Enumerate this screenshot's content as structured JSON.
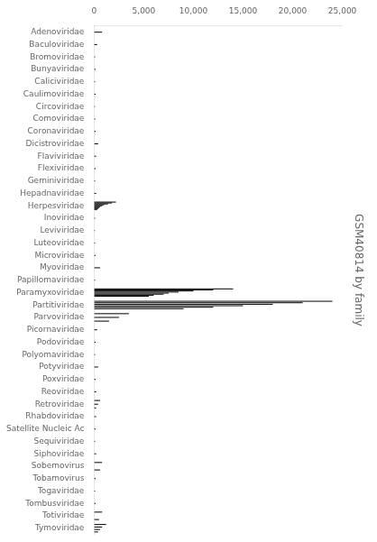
{
  "chart_data": {
    "type": "line_segments",
    "title": "GSM40814 by family",
    "orientation": "horizontal",
    "color": "#000000",
    "grid": false,
    "xlim": [
      0,
      25000
    ],
    "xticks": [
      0,
      {
        "value": 5000,
        "label": "5,000"
      },
      {
        "value": 10000,
        "label": "10,000"
      },
      {
        "value": 15000,
        "label": "15,000"
      },
      {
        "value": 20000,
        "label": "20,000"
      },
      {
        "value": 25000,
        "label": "25,000"
      }
    ],
    "categories": [
      "Adenoviridae",
      "Baculoviridae",
      "Bromoviridae",
      "Bunyaviridae",
      "Caliciviridae",
      "Caulimoviridae",
      "Circoviridae",
      "Comoviridae",
      "Coronaviridae",
      "Dicistroviridae",
      "Flaviviridae",
      "Flexiviridae",
      "Geminiviridae",
      "Hepadnaviridae",
      "Herpesviridae",
      "Inoviridae",
      "Leviviridae",
      "Luteoviridae",
      "Microviridae",
      "Myoviridae",
      "Papillomaviridae",
      "Paramyxoviridae",
      "Partitiviridae",
      "Parvoviridae",
      "Picornaviridae",
      "Podoviridae",
      "Polyomaviridae",
      "Potyviridae",
      "Poxviridae",
      "Reoviridae",
      "Retroviridae",
      "Rhabdoviridae",
      "Satellite Nucleic Ac",
      "Sequiviridae",
      "Siphoviridae",
      "Sobemovirus",
      "Tobamovirus",
      "Togaviridae",
      "Tombusviridae",
      "Totiviridae",
      "Tymoviridae"
    ],
    "values": [
      [
        [
          0,
          800
        ]
      ],
      [
        [
          0,
          300
        ]
      ],
      [
        [
          0,
          100
        ]
      ],
      [
        [
          0,
          150
        ]
      ],
      [
        [
          0,
          100
        ]
      ],
      [
        [
          0,
          150
        ]
      ],
      [
        [
          0,
          80
        ]
      ],
      [
        [
          0,
          120
        ]
      ],
      [
        [
          0,
          150
        ]
      ],
      [
        [
          0,
          400
        ]
      ],
      [
        [
          0,
          200
        ]
      ],
      [
        [
          0,
          150
        ]
      ],
      [
        [
          0,
          100
        ]
      ],
      [
        [
          0,
          200
        ]
      ],
      [
        [
          0,
          2200
        ],
        [
          0,
          1800
        ],
        [
          0,
          1400
        ],
        [
          0,
          1000
        ],
        [
          0,
          800
        ],
        [
          0,
          600
        ],
        [
          0,
          500
        ],
        [
          0,
          400
        ],
        [
          0,
          300
        ]
      ],
      [
        [
          0,
          100
        ]
      ],
      [
        [
          0,
          80
        ]
      ],
      [
        [
          0,
          100
        ]
      ],
      [
        [
          0,
          150
        ]
      ],
      [
        [
          0,
          600
        ]
      ],
      [
        [
          0,
          100
        ]
      ],
      [
        [
          0,
          14000
        ],
        [
          0,
          12000
        ],
        [
          0,
          10000
        ],
        [
          0,
          8500
        ],
        [
          0,
          7500
        ],
        [
          0,
          7000
        ],
        [
          0,
          6000
        ],
        [
          0,
          5500
        ]
      ],
      [
        [
          0,
          24000
        ],
        [
          0,
          21000
        ],
        [
          0,
          18000
        ],
        [
          0,
          15000
        ],
        [
          0,
          12000
        ],
        [
          0,
          9000
        ]
      ],
      [
        [
          0,
          3500
        ],
        [
          0,
          2500
        ],
        [
          0,
          1500
        ]
      ],
      [
        [
          0,
          300
        ]
      ],
      [
        [
          0,
          150
        ]
      ],
      [
        [
          0,
          100
        ]
      ],
      [
        [
          0,
          400
        ]
      ],
      [
        [
          0,
          150
        ]
      ],
      [
        [
          0,
          200
        ]
      ],
      [
        [
          0,
          600
        ],
        [
          0,
          400
        ],
        [
          0,
          200
        ]
      ],
      [
        [
          0,
          200
        ]
      ],
      [
        [
          0,
          150
        ]
      ],
      [
        [
          0,
          100
        ]
      ],
      [
        [
          0,
          200
        ]
      ],
      [
        [
          0,
          800
        ],
        [
          0,
          600
        ]
      ],
      [
        [
          0,
          150
        ]
      ],
      [
        [
          0,
          100
        ]
      ],
      [
        [
          0,
          150
        ]
      ],
      [
        [
          0,
          800
        ],
        [
          0,
          500
        ]
      ],
      [
        [
          0,
          1200
        ],
        [
          0,
          800
        ],
        [
          0,
          600
        ],
        [
          0,
          400
        ]
      ]
    ]
  }
}
